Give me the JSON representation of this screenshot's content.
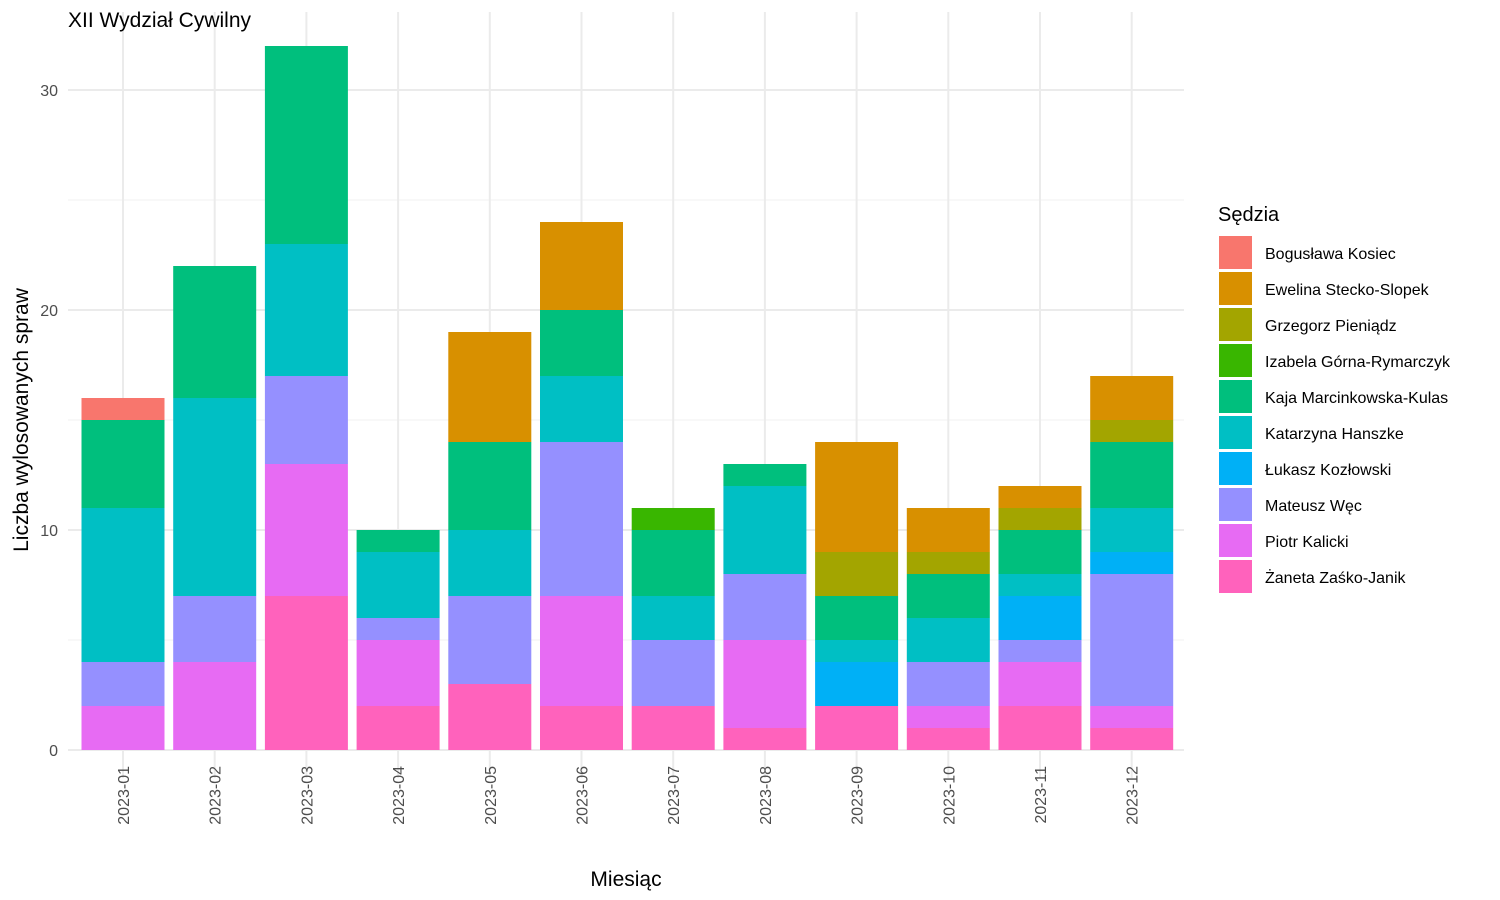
{
  "chart_data": {
    "type": "bar",
    "stacked": true,
    "title": "XII Wydział Cywilny",
    "xlabel": "Miesiąc",
    "ylabel": "Liczba wylosowanych spraw",
    "ylim": [
      0,
      32
    ],
    "yticks": [
      0,
      10,
      20,
      30
    ],
    "grid": true,
    "legend_position": "right",
    "legend_title": "Sędzia",
    "categories": [
      "2023-01",
      "2023-02",
      "2023-03",
      "2023-04",
      "2023-05",
      "2023-06",
      "2023-07",
      "2023-08",
      "2023-09",
      "2023-10",
      "2023-11",
      "2023-12"
    ],
    "series": [
      {
        "name": "Bogusława Kosiec",
        "color": "#F8766D",
        "values": [
          1,
          0,
          0,
          0,
          0,
          0,
          0,
          0,
          0,
          0,
          0,
          0
        ]
      },
      {
        "name": "Ewelina Stecko-Slopek",
        "color": "#D89000",
        "values": [
          0,
          0,
          0,
          0,
          5,
          4,
          0,
          0,
          5,
          2,
          1,
          2
        ]
      },
      {
        "name": "Grzegorz Pieniądz",
        "color": "#A3A500",
        "values": [
          0,
          0,
          0,
          0,
          0,
          0,
          0,
          0,
          2,
          1,
          1,
          1
        ]
      },
      {
        "name": "Izabela Górna-Rymarczyk",
        "color": "#39B600",
        "values": [
          0,
          0,
          0,
          0,
          0,
          0,
          1,
          0,
          0,
          0,
          0,
          0
        ]
      },
      {
        "name": "Kaja Marcinkowska-Kulas",
        "color": "#00BF7D",
        "values": [
          4,
          6,
          9,
          1,
          4,
          3,
          3,
          1,
          2,
          2,
          2,
          3
        ]
      },
      {
        "name": "Katarzyna Hanszke",
        "color": "#00BFC4",
        "values": [
          7,
          9,
          6,
          3,
          3,
          3,
          2,
          4,
          1,
          2,
          1,
          2
        ]
      },
      {
        "name": "Łukasz Kozłowski",
        "color": "#00B0F6",
        "values": [
          0,
          0,
          0,
          0,
          0,
          0,
          0,
          0,
          2,
          0,
          2,
          1
        ]
      },
      {
        "name": "Mateusz Węc",
        "color": "#9590FF",
        "values": [
          2,
          3,
          4,
          1,
          4,
          7,
          3,
          3,
          0,
          2,
          1,
          6
        ]
      },
      {
        "name": "Piotr Kalicki",
        "color": "#E76BF3",
        "values": [
          2,
          4,
          6,
          3,
          0,
          5,
          0,
          4,
          0,
          1,
          2,
          1
        ]
      },
      {
        "name": "Żaneta Zaśko-Janik",
        "color": "#FF62BC",
        "values": [
          0,
          0,
          7,
          2,
          3,
          2,
          2,
          1,
          2,
          1,
          2,
          1
        ]
      }
    ]
  }
}
